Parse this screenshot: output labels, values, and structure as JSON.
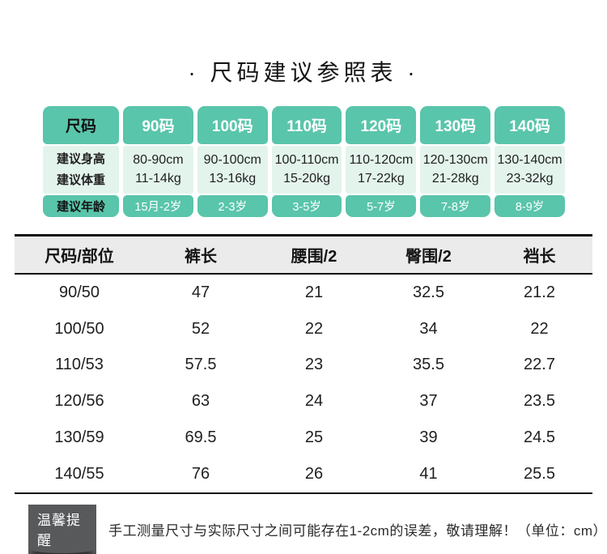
{
  "title": "· 尺码建议参照表 ·",
  "colors": {
    "teal": "#59c5ab",
    "mint": "#e3f4ec",
    "table_header_gray": "#ebebeb",
    "badge_gray": "#58595b",
    "border_black": "#141414"
  },
  "size_table": {
    "corner_label": "尺码",
    "row_labels": {
      "height": "建议身高",
      "weight": "建议体重",
      "age": "建议年龄"
    },
    "columns": [
      {
        "size": "90码",
        "height": "80-90cm",
        "weight": "11-14kg",
        "age": "15月-2岁"
      },
      {
        "size": "100码",
        "height": "90-100cm",
        "weight": "13-16kg",
        "age": "2-3岁"
      },
      {
        "size": "110码",
        "height": "100-110cm",
        "weight": "15-20kg",
        "age": "3-5岁"
      },
      {
        "size": "120码",
        "height": "110-120cm",
        "weight": "17-22kg",
        "age": "5-7岁"
      },
      {
        "size": "130码",
        "height": "120-130cm",
        "weight": "21-28kg",
        "age": "7-8岁"
      },
      {
        "size": "140码",
        "height": "130-140cm",
        "weight": "23-32kg",
        "age": "8-9岁"
      }
    ]
  },
  "measure_table": {
    "headers": [
      "尺码/部位",
      "裤长",
      "腰围/2",
      "臀围/2",
      "裆长"
    ],
    "rows": [
      [
        "90/50",
        "47",
        "21",
        "32.5",
        "21.2"
      ],
      [
        "100/50",
        "52",
        "22",
        "34",
        "22"
      ],
      [
        "110/53",
        "57.5",
        "23",
        "35.5",
        "22.7"
      ],
      [
        "120/56",
        "63",
        "24",
        "37",
        "23.5"
      ],
      [
        "130/59",
        "69.5",
        "25",
        "39",
        "24.5"
      ],
      [
        "140/55",
        "76",
        "26",
        "41",
        "25.5"
      ]
    ]
  },
  "footer": {
    "badge": "温馨提醒",
    "note": "手工测量尺寸与实际尺寸之间可能存在1-2cm的误差，敬请理解！（单位：cm）"
  }
}
